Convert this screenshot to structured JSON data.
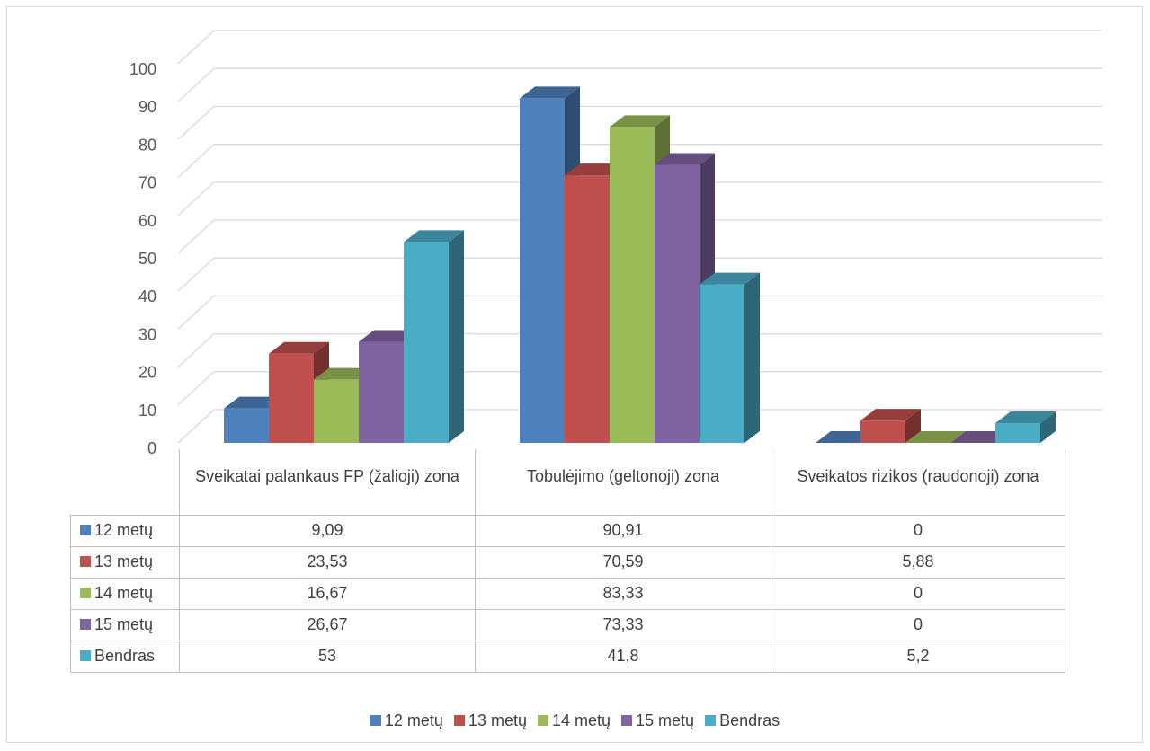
{
  "chart_data": {
    "type": "bar",
    "categories": [
      "Sveikatai palankaus FP (žalioji) zona",
      "Tobulėjimo (geltonoji) zona",
      "Sveikatos rizikos (raudonoji) zona"
    ],
    "series": [
      {
        "name": "12 metų",
        "color": "#4f81bd",
        "values": [
          9.09,
          90.91,
          0
        ],
        "labels": [
          "9,09",
          "90,91",
          "0"
        ]
      },
      {
        "name": "13 metų",
        "color": "#c0504d",
        "values": [
          23.53,
          70.59,
          5.88
        ],
        "labels": [
          "23,53",
          "70,59",
          "5,88"
        ]
      },
      {
        "name": "14 metų",
        "color": "#9bbb59",
        "values": [
          16.67,
          83.33,
          0
        ],
        "labels": [
          "16,67",
          "83,33",
          "0"
        ]
      },
      {
        "name": "15 metų",
        "color": "#8064a2",
        "values": [
          26.67,
          73.33,
          0
        ],
        "labels": [
          "26,67",
          "73,33",
          "0"
        ]
      },
      {
        "name": "Bendras",
        "color": "#4bacc6",
        "values": [
          53,
          41.8,
          5.2
        ],
        "labels": [
          "53",
          "41,8",
          "5,2"
        ]
      }
    ],
    "yticks": [
      "0",
      "10",
      "20",
      "30",
      "40",
      "50",
      "60",
      "70",
      "80",
      "90",
      "100"
    ],
    "ylim": [
      0,
      100
    ],
    "grid": true,
    "data_table": true,
    "legend_position": "bottom"
  }
}
